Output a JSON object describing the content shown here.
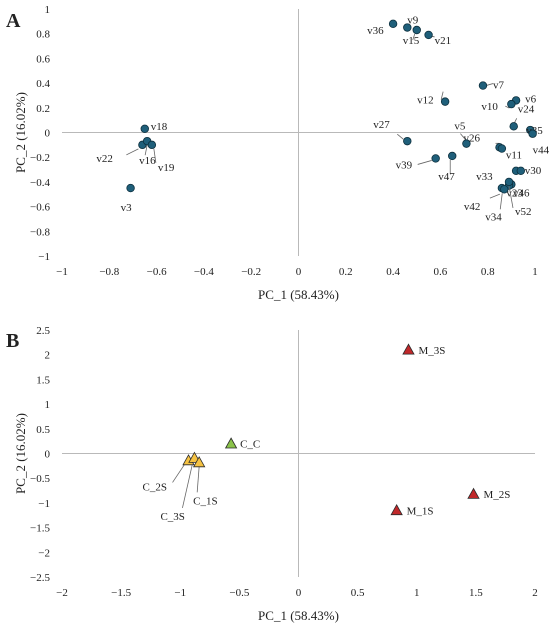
{
  "chart_data": [
    {
      "panel": "A",
      "type": "scatter",
      "xlabel": "PC_1 (58.43%)",
      "ylabel": "PC_2 (16.02%)",
      "xlim": [
        -1,
        1
      ],
      "ylim": [
        -1,
        1
      ],
      "xticks": [
        "−1",
        "−0.8",
        "−0.6",
        "−0.4",
        "−0.2",
        "0",
        "0.2",
        "0.4",
        "0.6",
        "0.8",
        "1"
      ],
      "yticks": [
        "1",
        "0.8",
        "0.6",
        "0.4",
        "0.2",
        "0",
        "−0.2",
        "−0.4",
        "−0.6",
        "−0.8",
        "−1"
      ],
      "xtick_values": [
        -1,
        -0.8,
        -0.6,
        -0.4,
        -0.2,
        0,
        0.2,
        0.4,
        0.6,
        0.8,
        1
      ],
      "ytick_values": [
        1,
        0.8,
        0.6,
        0.4,
        0.2,
        0,
        -0.2,
        -0.4,
        -0.6,
        -0.8,
        -1
      ],
      "grid": false,
      "marker": "circle",
      "marker_color": "#1f5f7a",
      "points": [
        {
          "label": "v36",
          "x": 0.4,
          "y": 0.88
        },
        {
          "label": "v9",
          "x": 0.46,
          "y": 0.85
        },
        {
          "label": "v15",
          "x": 0.5,
          "y": 0.83
        },
        {
          "label": "v21",
          "x": 0.55,
          "y": 0.79
        },
        {
          "label": "v12",
          "x": 0.62,
          "y": 0.25
        },
        {
          "label": "v7",
          "x": 0.78,
          "y": 0.38
        },
        {
          "label": "v6",
          "x": 0.92,
          "y": 0.26
        },
        {
          "label": "v10",
          "x": 0.9,
          "y": 0.23
        },
        {
          "label": "v24",
          "x": 0.91,
          "y": 0.05
        },
        {
          "label": "v35",
          "x": 0.98,
          "y": 0.02
        },
        {
          "label": "v26",
          "x": 0.85,
          "y": -0.12
        },
        {
          "label": "v11",
          "x": 0.86,
          "y": -0.13
        },
        {
          "label": "v44",
          "x": 0.99,
          "y": -0.01
        },
        {
          "label": "v27",
          "x": 0.46,
          "y": -0.07
        },
        {
          "label": "v5",
          "x": 0.71,
          "y": -0.09
        },
        {
          "label": "v39",
          "x": 0.58,
          "y": -0.21
        },
        {
          "label": "v47",
          "x": 0.65,
          "y": -0.19
        },
        {
          "label": "v33",
          "x": 0.92,
          "y": -0.31
        },
        {
          "label": "v30",
          "x": 0.94,
          "y": -0.31
        },
        {
          "label": "v23",
          "x": 0.9,
          "y": -0.42
        },
        {
          "label": "v46",
          "x": 0.89,
          "y": -0.43
        },
        {
          "label": "v42",
          "x": 0.86,
          "y": -0.45
        },
        {
          "label": "v34",
          "x": 0.87,
          "y": -0.46
        },
        {
          "label": "v52",
          "x": 0.89,
          "y": -0.4
        },
        {
          "label": "v18",
          "x": -0.65,
          "y": 0.03
        },
        {
          "label": "v22",
          "x": -0.66,
          "y": -0.1
        },
        {
          "label": "v16",
          "x": -0.64,
          "y": -0.07
        },
        {
          "label": "v19",
          "x": -0.62,
          "y": -0.1
        },
        {
          "label": "v3",
          "x": -0.71,
          "y": -0.45
        }
      ]
    },
    {
      "panel": "B",
      "type": "scatter",
      "xlabel": "PC_1 (58.43%)",
      "ylabel": "PC_2 (16.02%)",
      "xlim": [
        -2,
        2
      ],
      "ylim": [
        -2.5,
        2.5
      ],
      "xticks": [
        "−2",
        "−1.5",
        "−1",
        "−0.5",
        "0",
        "0.5",
        "1",
        "1.5",
        "2"
      ],
      "yticks": [
        "2.5",
        "2",
        "1.5",
        "1",
        "0.5",
        "0",
        "−0.5",
        "−1",
        "−1.5",
        "−2",
        "−2.5"
      ],
      "xtick_values": [
        -2,
        -1.5,
        -1,
        -0.5,
        0,
        0.5,
        1,
        1.5,
        2
      ],
      "ytick_values": [
        2.5,
        2,
        1.5,
        1,
        0.5,
        0,
        -0.5,
        -1,
        -1.5,
        -2,
        -2.5
      ],
      "grid": false,
      "marker": "triangle",
      "points": [
        {
          "label": "M_3S",
          "x": 0.93,
          "y": 2.1,
          "color": "#c0282a"
        },
        {
          "label": "C_C",
          "x": -0.57,
          "y": 0.2,
          "color": "#8bc34a"
        },
        {
          "label": "C_2S",
          "x": -0.93,
          "y": -0.14,
          "color": "#f5c242"
        },
        {
          "label": "C_3S",
          "x": -0.88,
          "y": -0.09,
          "color": "#f5c242"
        },
        {
          "label": "C_1S",
          "x": -0.84,
          "y": -0.18,
          "color": "#f5c242"
        },
        {
          "label": "M_2S",
          "x": 1.48,
          "y": -0.82,
          "color": "#c0282a"
        },
        {
          "label": "M_1S",
          "x": 0.83,
          "y": -1.15,
          "color": "#c0282a"
        }
      ]
    }
  ]
}
